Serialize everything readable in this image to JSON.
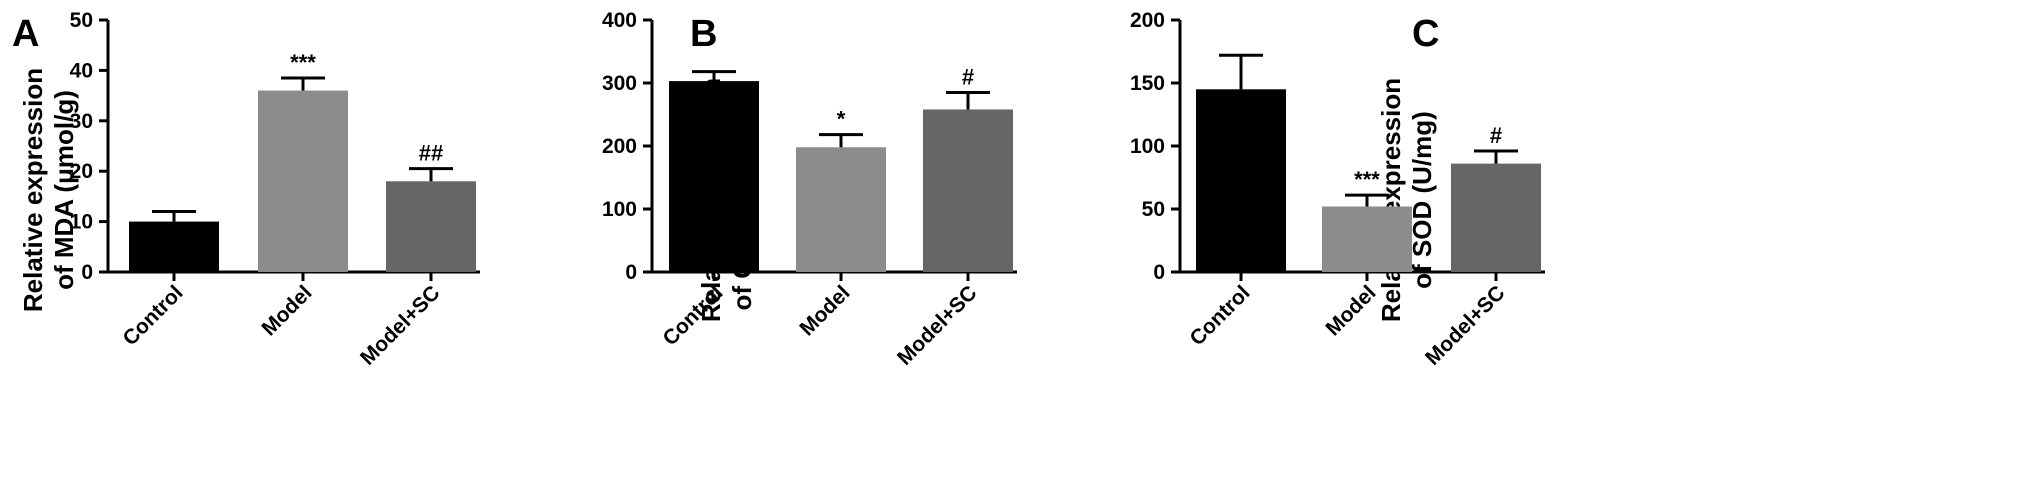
{
  "chart_data": [
    {
      "type": "bar",
      "panel": "A",
      "ylabel_line1": "Relative expression",
      "ylabel_line2": "of MDA (μmol/g)",
      "ylim": [
        0,
        50
      ],
      "yticks": [
        0,
        10,
        20,
        30,
        40,
        50
      ],
      "categories": [
        "Control",
        "Model",
        "Model+SC"
      ],
      "values": [
        10,
        36,
        18
      ],
      "errors": [
        2,
        2.5,
        2.5
      ],
      "annotations": [
        "",
        "***",
        "##"
      ],
      "colors": [
        "#000000",
        "#8c8c8c",
        "#666666"
      ]
    },
    {
      "type": "bar",
      "panel": "B",
      "ylabel_line1": "Relative expression",
      "ylabel_line2": "of GSH (μmol/mg)",
      "ylim": [
        0,
        400
      ],
      "yticks": [
        0,
        100,
        200,
        300,
        400
      ],
      "categories": [
        "Control",
        "Model",
        "Model+SC"
      ],
      "values": [
        303,
        198,
        258
      ],
      "errors": [
        15,
        20,
        27
      ],
      "annotations": [
        "",
        "*",
        "#"
      ],
      "colors": [
        "#000000",
        "#8c8c8c",
        "#666666"
      ]
    },
    {
      "type": "bar",
      "panel": "C",
      "ylabel_line1": "Relative expression",
      "ylabel_line2": "of SOD (U/mg)",
      "ylim": [
        0,
        200
      ],
      "yticks": [
        0,
        50,
        100,
        150,
        200
      ],
      "categories": [
        "Control",
        "Model",
        "Model+SC"
      ],
      "values": [
        145,
        52,
        86
      ],
      "errors": [
        27,
        9,
        10
      ],
      "annotations": [
        "",
        "***",
        "#"
      ],
      "colors": [
        "#000000",
        "#8c8c8c",
        "#666666"
      ]
    }
  ]
}
